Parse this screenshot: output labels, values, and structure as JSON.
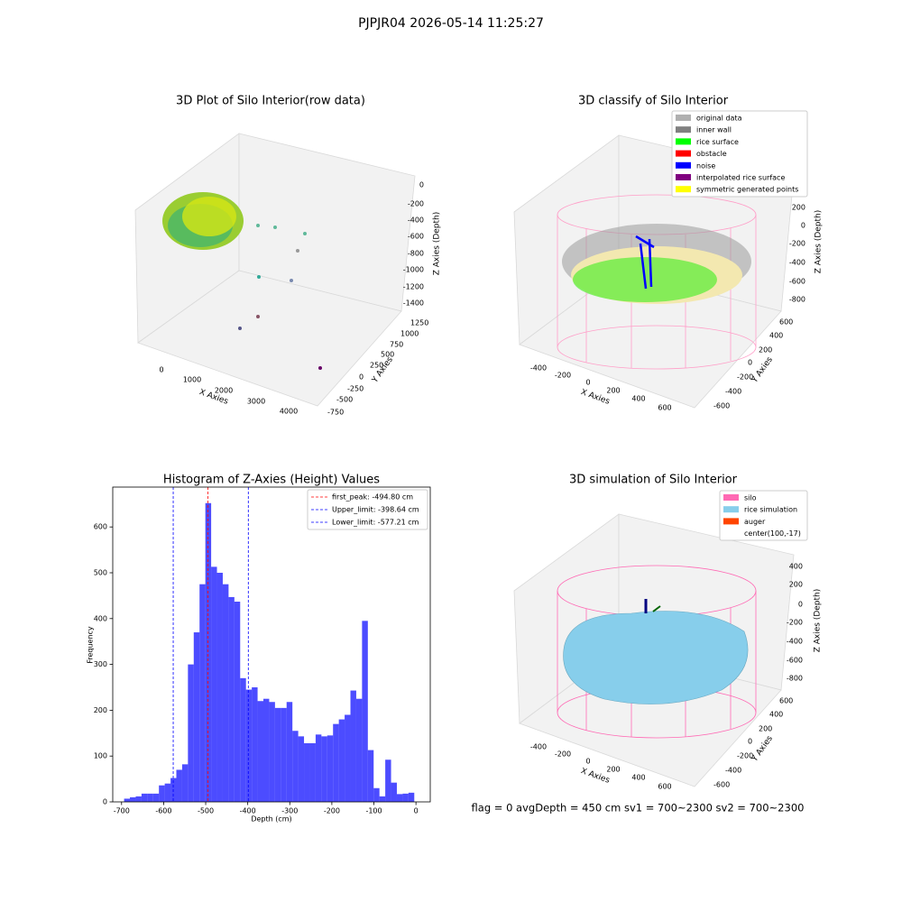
{
  "title": "PJPJR04 2026-05-14 11:25:27",
  "footer": "flag = 0     avgDepth = 450 cm  sv1 = 700~2300  sv2 = 700~2300",
  "chart_data": [
    {
      "type": "scatter3d",
      "title": "3D Plot of Silo Interior(row data)",
      "xlabel": "X Axies",
      "ylabel": "Y Axies",
      "zlabel": "Z Axies (Depth)",
      "xticks": [
        0,
        1000,
        2000,
        3000,
        4000
      ],
      "yticks": [
        -750,
        -500,
        -250,
        0,
        250,
        500,
        750,
        1000,
        1250
      ],
      "zticks": [
        0,
        -200,
        -400,
        -600,
        -800,
        -1000,
        -1200,
        -1400
      ]
    },
    {
      "type": "scatter3d",
      "title": "3D classify of Silo Interior",
      "xlabel": "X Axies",
      "ylabel": "Y Axies",
      "zlabel": "Z Axies (Depth)",
      "xticks": [
        -400,
        -200,
        0,
        200,
        400,
        600
      ],
      "yticks": [
        -600,
        -400,
        -200,
        0,
        200,
        400,
        600
      ],
      "zticks": [
        200,
        0,
        -200,
        -400,
        -600,
        -800
      ],
      "legend": [
        {
          "name": "original data",
          "color": "#b0b0b0"
        },
        {
          "name": "inner wall",
          "color": "#808080"
        },
        {
          "name": "rice surface",
          "color": "#00ff00"
        },
        {
          "name": "obstacle",
          "color": "#ff0000"
        },
        {
          "name": "noise",
          "color": "#0000ff"
        },
        {
          "name": "interpolated rice surface",
          "color": "#800080"
        },
        {
          "name": "symmetric generated points",
          "color": "#ffff00"
        }
      ]
    },
    {
      "type": "histogram",
      "title": "Histogram of Z-Axies (Height) Values",
      "xlabel": "Depth (cm)",
      "ylabel": "Frequency",
      "color": "#0000ff",
      "bins": [
        -694,
        -680.2,
        -666.4,
        -652.6,
        -638.8,
        -625,
        -611.2,
        -597.4,
        -583.6,
        -569.8,
        -556,
        -542.2,
        -528.4,
        -514.6,
        -500.8,
        -487,
        -473.2,
        -459.4,
        -445.6,
        -431.8,
        -418,
        -404.2,
        -390.4,
        -376.6,
        -362.8,
        -349,
        -335.2,
        -321.4,
        -307.6,
        -293.8,
        -280,
        -266.2,
        -252.4,
        -238.6,
        -224.8,
        -211,
        -197.2,
        -183.4,
        -169.6,
        -155.8,
        -142,
        -128.2,
        -114.4,
        -100.6,
        -86.8,
        -73,
        -59.2,
        -45.4,
        -31.6,
        -17.8,
        -4
      ],
      "values": [
        7,
        10,
        12,
        18,
        18,
        18,
        36,
        40,
        52,
        70,
        82,
        300,
        370,
        475,
        652,
        513,
        500,
        475,
        447,
        437,
        270,
        245,
        250,
        220,
        225,
        218,
        205,
        205,
        218,
        155,
        143,
        128,
        128,
        147,
        143,
        145,
        170,
        180,
        190,
        243,
        225,
        395,
        113,
        30,
        12,
        92,
        42,
        17,
        18,
        20
      ],
      "xlim": [
        -721,
        34
      ],
      "ylim": [
        0,
        687
      ],
      "xticks": [
        -700,
        -600,
        -500,
        -400,
        -300,
        -200,
        -100,
        0
      ],
      "yticks": [
        0,
        100,
        200,
        300,
        400,
        500,
        600
      ],
      "vlines": [
        {
          "name": "first_peak: -494.80 cm",
          "value": -494.8,
          "color": "#ff0000"
        },
        {
          "name": "Upper_limit: -398.64 cm",
          "value": -398.64,
          "color": "#0000ff"
        },
        {
          "name": "Lower_limit: -577.21 cm",
          "value": -577.21,
          "color": "#0000ff"
        }
      ]
    },
    {
      "type": "surface3d",
      "title": "3D simulation of Silo Interior",
      "xlabel": "X Axies",
      "ylabel": "Y Axies",
      "zlabel": "Z Axies (Depth)",
      "xticks": [
        -400,
        -200,
        0,
        200,
        400,
        600
      ],
      "yticks": [
        -600,
        -400,
        -200,
        0,
        200,
        400,
        600
      ],
      "zticks": [
        400,
        200,
        0,
        -200,
        -400,
        -600,
        -800
      ],
      "legend": [
        {
          "name": "silo",
          "color": "#ff69b4"
        },
        {
          "name": "rice simulation",
          "color": "#87ceeb"
        },
        {
          "name": "auger",
          "color": "#ff4500"
        },
        {
          "name": "center(100,-17)"
        }
      ]
    }
  ]
}
